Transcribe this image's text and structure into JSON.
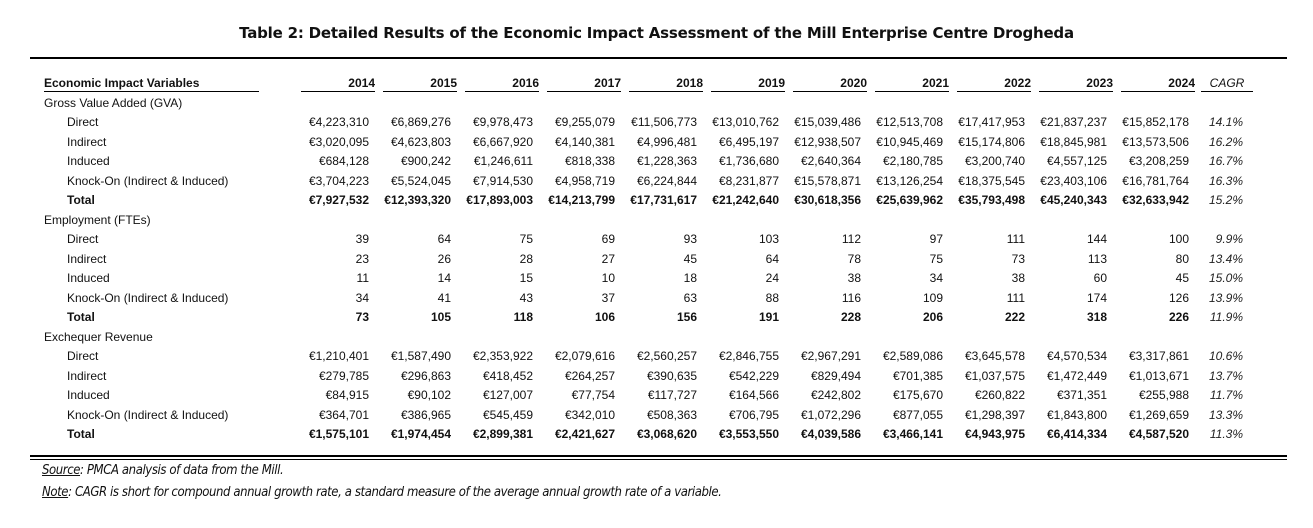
{
  "title": "Table 2: Detailed Results of the Economic Impact Assessment of the Mill Enterprise Centre Drogheda",
  "header": {
    "variables_label": "Economic Impact Variables",
    "years": [
      "2014",
      "2015",
      "2016",
      "2017",
      "2018",
      "2019",
      "2020",
      "2021",
      "2022",
      "2023",
      "2024"
    ],
    "cagr_label": "CAGR"
  },
  "sections": [
    {
      "label": "Gross Value Added (GVA)",
      "rows": [
        {
          "label": "Direct",
          "values": [
            "€4,223,310",
            "€6,869,276",
            "€9,978,473",
            "€9,255,079",
            "€11,506,773",
            "€13,010,762",
            "€15,039,486",
            "€12,513,708",
            "€17,417,953",
            "€21,837,237",
            "€15,852,178"
          ],
          "cagr": "14.1%"
        },
        {
          "label": "Indirect",
          "values": [
            "€3,020,095",
            "€4,623,803",
            "€6,667,920",
            "€4,140,381",
            "€4,996,481",
            "€6,495,197",
            "€12,938,507",
            "€10,945,469",
            "€15,174,806",
            "€18,845,981",
            "€13,573,506"
          ],
          "cagr": "16.2%"
        },
        {
          "label": "Induced",
          "values": [
            "€684,128",
            "€900,242",
            "€1,246,611",
            "€818,338",
            "€1,228,363",
            "€1,736,680",
            "€2,640,364",
            "€2,180,785",
            "€3,200,740",
            "€4,557,125",
            "€3,208,259"
          ],
          "cagr": "16.7%"
        },
        {
          "label": "Knock-On (Indirect & Induced)",
          "values": [
            "€3,704,223",
            "€5,524,045",
            "€7,914,530",
            "€4,958,719",
            "€6,224,844",
            "€8,231,877",
            "€15,578,871",
            "€13,126,254",
            "€18,375,545",
            "€23,403,106",
            "€16,781,764"
          ],
          "cagr": "16.3%"
        },
        {
          "label": "Total",
          "total": true,
          "values": [
            "€7,927,532",
            "€12,393,320",
            "€17,893,003",
            "€14,213,799",
            "€17,731,617",
            "€21,242,640",
            "€30,618,356",
            "€25,639,962",
            "€35,793,498",
            "€45,240,343",
            "€32,633,942"
          ],
          "cagr": "15.2%"
        }
      ]
    },
    {
      "label": "Employment (FTEs)",
      "rows": [
        {
          "label": "Direct",
          "values": [
            "39",
            "64",
            "75",
            "69",
            "93",
            "103",
            "112",
            "97",
            "111",
            "144",
            "100"
          ],
          "cagr": "9.9%"
        },
        {
          "label": "Indirect",
          "values": [
            "23",
            "26",
            "28",
            "27",
            "45",
            "64",
            "78",
            "75",
            "73",
            "113",
            "80"
          ],
          "cagr": "13.4%"
        },
        {
          "label": "Induced",
          "values": [
            "11",
            "14",
            "15",
            "10",
            "18",
            "24",
            "38",
            "34",
            "38",
            "60",
            "45"
          ],
          "cagr": "15.0%"
        },
        {
          "label": "Knock-On (Indirect & Induced)",
          "values": [
            "34",
            "41",
            "43",
            "37",
            "63",
            "88",
            "116",
            "109",
            "111",
            "174",
            "126"
          ],
          "cagr": "13.9%"
        },
        {
          "label": "Total",
          "total": true,
          "values": [
            "73",
            "105",
            "118",
            "106",
            "156",
            "191",
            "228",
            "206",
            "222",
            "318",
            "226"
          ],
          "cagr": "11.9%"
        }
      ]
    },
    {
      "label": "Exchequer Revenue",
      "rows": [
        {
          "label": "Direct",
          "values": [
            "€1,210,401",
            "€1,587,490",
            "€2,353,922",
            "€2,079,616",
            "€2,560,257",
            "€2,846,755",
            "€2,967,291",
            "€2,589,086",
            "€3,645,578",
            "€4,570,534",
            "€3,317,861"
          ],
          "cagr": "10.6%"
        },
        {
          "label": "Indirect",
          "values": [
            "€279,785",
            "€296,863",
            "€418,452",
            "€264,257",
            "€390,635",
            "€542,229",
            "€829,494",
            "€701,385",
            "€1,037,575",
            "€1,472,449",
            "€1,013,671"
          ],
          "cagr": "13.7%"
        },
        {
          "label": "Induced",
          "values": [
            "€84,915",
            "€90,102",
            "€127,007",
            "€77,754",
            "€117,727",
            "€164,566",
            "€242,802",
            "€175,670",
            "€260,822",
            "€371,351",
            "€255,988"
          ],
          "cagr": "11.7%"
        },
        {
          "label": "Knock-On (Indirect & Induced)",
          "values": [
            "€364,701",
            "€386,965",
            "€545,459",
            "€342,010",
            "€508,363",
            "€706,795",
            "€1,072,296",
            "€877,055",
            "€1,298,397",
            "€1,843,800",
            "€1,269,659"
          ],
          "cagr": "13.3%"
        },
        {
          "label": "Total",
          "total": true,
          "values": [
            "€1,575,101",
            "€1,974,454",
            "€2,899,381",
            "€2,421,627",
            "€3,068,620",
            "€3,553,550",
            "€4,039,586",
            "€3,466,141",
            "€4,943,975",
            "€6,414,334",
            "€4,587,520"
          ],
          "cagr": "11.3%"
        }
      ]
    }
  ],
  "footnotes": {
    "source_label": "Source",
    "source_text": ": PMCA analysis of data from the Mill.",
    "note_label": "Note",
    "note_text": ": CAGR is short for compound annual growth rate, a standard measure of the average annual growth rate of a variable."
  }
}
